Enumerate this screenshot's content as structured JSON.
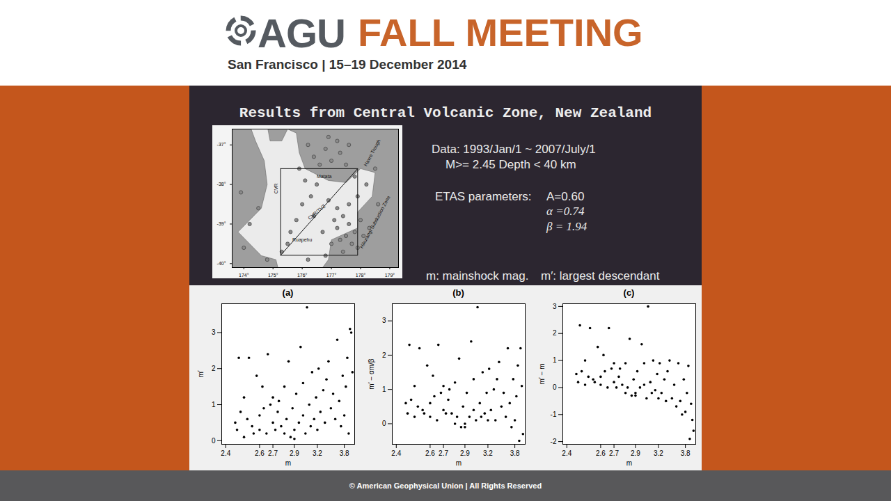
{
  "header": {
    "logo": "AGU",
    "title": "FALL MEETING",
    "subtitle": "San Francisco | 15–19 December 2014"
  },
  "slide": {
    "title": "Results from Central Volcanic Zone, New Zealand",
    "data_lines": [
      "Data: 1993/Jan/1 ~ 2007/July/1",
      "M>= 2.45  Depth < 40 km"
    ],
    "etas_title": "ETAS parameters:",
    "etas_lines": [
      "A=0.60",
      "α =0.74",
      "β = 1.94"
    ],
    "notes": [
      "m: mainshock  mag.",
      "m′: largest descendant"
    ]
  },
  "map": {
    "xlim": [
      173.6,
      179.3
    ],
    "ylim": [
      -40.1,
      -36.6
    ],
    "xticks": [
      {
        "value": 174,
        "label": "174°"
      },
      {
        "value": 175,
        "label": "175°"
      },
      {
        "value": 176,
        "label": "176°"
      },
      {
        "value": 177,
        "label": "177°"
      },
      {
        "value": 178,
        "label": "178°"
      },
      {
        "value": 179,
        "label": "179°"
      }
    ],
    "yticks": [
      {
        "value": -37,
        "label": "-37°"
      },
      {
        "value": -38,
        "label": "-38°"
      },
      {
        "value": -39,
        "label": "-39°"
      },
      {
        "value": -40,
        "label": "-40°"
      }
    ],
    "events": {
      "lon": [
        176.9,
        177.2,
        177.6,
        177.3,
        176.8,
        177.0,
        176.6,
        177.5,
        176.4,
        176.2,
        175.9,
        176.1,
        176.5,
        176.3,
        176.0,
        175.8,
        175.6,
        175.5,
        176.9,
        177.2,
        177.4,
        177.6,
        177.8,
        177.7,
        177.4,
        177.9,
        178.1,
        177.5,
        177.2,
        177.0,
        176.8,
        177.6,
        178.0,
        178.3,
        177.9,
        178.2,
        177.1,
        177.3,
        176.7,
        174.5,
        174.2,
        174.0,
        174.8,
        173.9,
        178.5,
        178.6,
        177.8,
        176.4,
        175.3,
        176.2
      ],
      "lat": [
        -36.8,
        -36.9,
        -37.0,
        -37.2,
        -37.1,
        -37.4,
        -37.5,
        -37.5,
        -37.3,
        -37.0,
        -37.6,
        -37.9,
        -38.0,
        -38.3,
        -38.5,
        -38.9,
        -39.2,
        -39.5,
        -38.4,
        -38.6,
        -38.8,
        -39.0,
        -39.2,
        -39.5,
        -39.7,
        -39.6,
        -39.3,
        -39.3,
        -39.1,
        -39.5,
        -39.8,
        -38.5,
        -38.9,
        -39.1,
        -38.3,
        -38.0,
        -38.9,
        -39.4,
        -39.2,
        -38.6,
        -39.0,
        -39.6,
        -39.9,
        -38.2,
        -37.6,
        -38.5,
        -37.8,
        -38.8,
        -39.7,
        -39.9
      ]
    },
    "labels": [
      {
        "text": "Havre Trough",
        "lon": 178.4,
        "lat": -37.2
      },
      {
        "text": "Matata",
        "lon": 176.75,
        "lat": -37.8
      },
      {
        "text": "CVR",
        "lon": 175.1,
        "lat": -38.1
      },
      {
        "text": "CVR/TVZ",
        "lon": 176.5,
        "lat": -38.7
      },
      {
        "text": "Ruapehu",
        "lon": 176.0,
        "lat": -39.4
      },
      {
        "text": "Hikurangi Subduction Zone",
        "lon": 178.5,
        "lat": -38.95
      }
    ]
  },
  "chart_data": [
    {
      "type": "scatter",
      "title": "(a)",
      "x_label": "m",
      "y_label": "m′",
      "color": "#000000",
      "marker": "circle",
      "xlim": [
        2.38,
        4.2
      ],
      "xticks": [
        2.4,
        2.6,
        2.7,
        2.9,
        3.2,
        3.8
      ],
      "ylim": [
        -0.1,
        3.8
      ],
      "yticks": [
        0,
        1,
        2,
        3
      ],
      "x": [
        2.45,
        2.46,
        2.47,
        2.48,
        2.5,
        2.5,
        2.52,
        2.53,
        2.55,
        2.56,
        2.58,
        2.6,
        2.6,
        2.62,
        2.63,
        2.65,
        2.66,
        2.68,
        2.7,
        2.7,
        2.72,
        2.74,
        2.75,
        2.77,
        2.8,
        2.8,
        2.82,
        2.84,
        2.86,
        2.88,
        2.9,
        2.9,
        2.92,
        2.95,
        2.97,
        3.0,
        3.0,
        3.03,
        3.05,
        3.08,
        3.1,
        3.12,
        3.15,
        3.18,
        3.2,
        3.22,
        3.25,
        3.3,
        3.33,
        3.36,
        3.4,
        3.45,
        3.5,
        3.55,
        3.6,
        3.65,
        3.7,
        3.75,
        3.8,
        3.85,
        3.9,
        3.95,
        4.0,
        4.05,
        4.1
      ],
      "values": [
        0.5,
        0.3,
        2.3,
        0.8,
        0.1,
        1.2,
        0.6,
        2.3,
        0.4,
        0.2,
        1.8,
        0.7,
        0.3,
        1.5,
        0.9,
        0.2,
        2.4,
        1.0,
        0.5,
        1.2,
        0.3,
        0.8,
        1.1,
        0.4,
        0.2,
        1.5,
        0.6,
        2.2,
        0.1,
        0.9,
        0.3,
        0.05,
        1.3,
        0.5,
        2.6,
        0.7,
        1.6,
        0.2,
        3.7,
        1.0,
        0.4,
        1.9,
        0.6,
        1.2,
        0.3,
        2.0,
        0.8,
        1.4,
        0.5,
        1.7,
        2.2,
        0.9,
        1.3,
        0.6,
        2.8,
        1.1,
        0.4,
        1.8,
        0.7,
        1.5,
        2.3,
        0.2,
        3.1,
        3.0,
        1.9
      ]
    },
    {
      "type": "scatter",
      "title": "(b)",
      "x_label": "m",
      "y_label": "m′ − αm/β",
      "color": "#000000",
      "marker": "circle",
      "xlim": [
        2.38,
        4.2
      ],
      "xticks": [
        2.4,
        2.6,
        2.7,
        2.9,
        3.2,
        3.8
      ],
      "ylim": [
        -0.6,
        3.5
      ],
      "yticks": [
        0,
        1,
        2,
        3
      ],
      "x": [
        2.45,
        2.46,
        2.47,
        2.48,
        2.5,
        2.5,
        2.52,
        2.53,
        2.55,
        2.56,
        2.58,
        2.6,
        2.6,
        2.62,
        2.63,
        2.65,
        2.66,
        2.68,
        2.7,
        2.7,
        2.72,
        2.74,
        2.75,
        2.77,
        2.8,
        2.8,
        2.82,
        2.84,
        2.86,
        2.88,
        2.9,
        2.9,
        2.92,
        2.95,
        2.97,
        3.0,
        3.0,
        3.03,
        3.05,
        3.08,
        3.1,
        3.12,
        3.15,
        3.18,
        3.2,
        3.22,
        3.25,
        3.3,
        3.33,
        3.36,
        3.4,
        3.45,
        3.5,
        3.55,
        3.6,
        3.65,
        3.7,
        3.75,
        3.8,
        3.85,
        3.9,
        3.95,
        4.0,
        4.05,
        4.1
      ],
      "values": [
        0.6,
        0.3,
        2.3,
        0.7,
        0.2,
        1.1,
        0.5,
        2.2,
        0.4,
        0.3,
        1.7,
        0.6,
        0.2,
        1.4,
        0.8,
        0.1,
        2.3,
        0.9,
        0.4,
        1.1,
        0.3,
        0.7,
        1.0,
        0.3,
        0.0,
        1.2,
        0.2,
        1.9,
        -0.1,
        0.5,
        0.0,
        -0.1,
        0.9,
        0.2,
        2.4,
        0.4,
        1.3,
        0.1,
        3.4,
        0.6,
        0.2,
        1.5,
        0.3,
        0.9,
        0.1,
        1.6,
        0.4,
        1.0,
        0.1,
        1.3,
        1.8,
        0.5,
        0.9,
        0.2,
        2.2,
        0.6,
        -0.1,
        1.3,
        0.1,
        0.8,
        1.7,
        -0.5,
        2.2,
        1.1,
        -0.3
      ]
    },
    {
      "type": "scatter",
      "title": "(c)",
      "x_label": "m",
      "y_label": "m′ − m",
      "color": "#000000",
      "marker": "circle",
      "xlim": [
        2.38,
        4.2
      ],
      "xticks": [
        2.4,
        2.6,
        2.7,
        2.9,
        3.2,
        3.8
      ],
      "ylim": [
        -2.1,
        3.1
      ],
      "yticks": [
        -2,
        -1,
        0,
        1,
        2,
        3
      ],
      "x": [
        2.45,
        2.46,
        2.47,
        2.48,
        2.5,
        2.5,
        2.52,
        2.53,
        2.55,
        2.56,
        2.58,
        2.6,
        2.6,
        2.62,
        2.63,
        2.65,
        2.66,
        2.68,
        2.7,
        2.7,
        2.72,
        2.74,
        2.75,
        2.77,
        2.8,
        2.8,
        2.82,
        2.84,
        2.86,
        2.88,
        2.9,
        2.9,
        2.92,
        2.95,
        2.97,
        3.0,
        3.0,
        3.03,
        3.05,
        3.08,
        3.1,
        3.12,
        3.15,
        3.18,
        3.2,
        3.22,
        3.25,
        3.3,
        3.33,
        3.36,
        3.4,
        3.45,
        3.5,
        3.55,
        3.6,
        3.65,
        3.7,
        3.75,
        3.8,
        3.85,
        3.9,
        3.95,
        4.0,
        4.05,
        4.1
      ],
      "values": [
        0.5,
        0.2,
        2.3,
        0.6,
        0.1,
        1.0,
        0.4,
        2.2,
        0.3,
        0.2,
        1.5,
        0.4,
        0.1,
        1.2,
        0.6,
        0.0,
        2.2,
        0.7,
        0.2,
        0.9,
        0.0,
        0.4,
        0.7,
        0.1,
        -0.2,
        0.9,
        0.0,
        1.8,
        -0.3,
        0.3,
        -0.2,
        -0.3,
        0.6,
        0.0,
        1.6,
        0.1,
        0.9,
        -0.4,
        3.0,
        0.2,
        -0.2,
        1.0,
        -0.1,
        0.5,
        -0.4,
        0.9,
        -0.2,
        0.3,
        -0.5,
        0.6,
        1.0,
        -0.4,
        0.1,
        -0.7,
        0.9,
        -0.5,
        -1.0,
        0.3,
        -0.9,
        -0.2,
        0.8,
        -1.9,
        -0.6,
        -1.2,
        -1.6
      ]
    }
  ],
  "footer": "© American Geophysical Union | All Rights Reserved"
}
